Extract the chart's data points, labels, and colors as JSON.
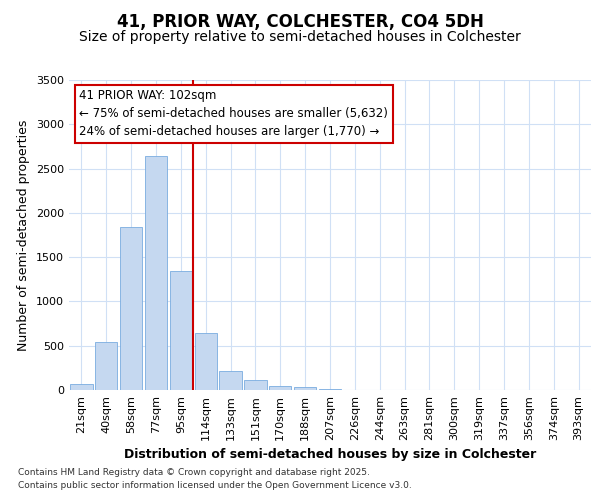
{
  "title": "41, PRIOR WAY, COLCHESTER, CO4 5DH",
  "subtitle": "Size of property relative to semi-detached houses in Colchester",
  "xlabel": "Distribution of semi-detached houses by size in Colchester",
  "ylabel": "Number of semi-detached properties",
  "categories": [
    "21sqm",
    "40sqm",
    "58sqm",
    "77sqm",
    "95sqm",
    "114sqm",
    "133sqm",
    "151sqm",
    "170sqm",
    "188sqm",
    "207sqm",
    "226sqm",
    "244sqm",
    "263sqm",
    "281sqm",
    "300sqm",
    "319sqm",
    "337sqm",
    "356sqm",
    "374sqm",
    "393sqm"
  ],
  "values": [
    70,
    540,
    1840,
    2640,
    1340,
    640,
    210,
    110,
    50,
    30,
    10,
    5,
    2,
    1,
    0,
    0,
    0,
    0,
    0,
    0,
    0
  ],
  "bar_color": "#c5d8f0",
  "bar_edge_color": "#7aace0",
  "vline_color": "#cc0000",
  "vline_position": 4.5,
  "property_label": "41 PRIOR WAY: 102sqm",
  "smaller_text": "← 75% of semi-detached houses are smaller (5,632)",
  "larger_text": "24% of semi-detached houses are larger (1,770) →",
  "annotation_box_color": "#cc0000",
  "ylim": [
    0,
    3500
  ],
  "yticks": [
    0,
    500,
    1000,
    1500,
    2000,
    2500,
    3000,
    3500
  ],
  "footer1": "Contains HM Land Registry data © Crown copyright and database right 2025.",
  "footer2": "Contains public sector information licensed under the Open Government Licence v3.0.",
  "bg_color": "#ffffff",
  "plot_bg_color": "#ffffff",
  "grid_color": "#d0e0f5",
  "title_fontsize": 12,
  "subtitle_fontsize": 10,
  "annotation_fontsize": 8.5,
  "axis_label_fontsize": 9,
  "tick_fontsize": 8
}
